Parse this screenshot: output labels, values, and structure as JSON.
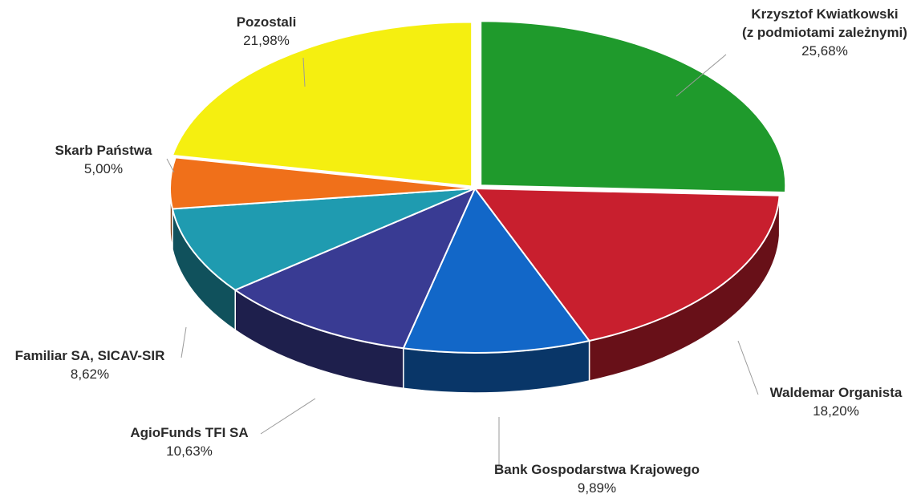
{
  "chart_data": {
    "type": "pie",
    "title": "",
    "series": [
      {
        "label": "Krzysztof Kwiatkowski",
        "label_line2": "(z podmiotami zależnymi)",
        "value": 25.68,
        "value_text": "25,68%",
        "color": "#1f9a2c"
      },
      {
        "label": "Waldemar Organista",
        "value": 18.2,
        "value_text": "18,20%",
        "color": "#c81f2e"
      },
      {
        "label": "Bank Gospodarstwa Krajowego",
        "value": 9.89,
        "value_text": "9,89%",
        "color": "#1267c8"
      },
      {
        "label": "AgioFunds TFI SA",
        "value": 10.63,
        "value_text": "10,63%",
        "color": "#393b93"
      },
      {
        "label": "Familiar SA, SICAV-SIR",
        "value": 8.62,
        "value_text": "8,62%",
        "color": "#1f9bb0"
      },
      {
        "label": "Skarb Państwa",
        "value": 5.0,
        "value_text": "5,00%",
        "color": "#f0701a"
      },
      {
        "label": "Pozostali",
        "value": 21.98,
        "value_text": "21,98%",
        "color": "#f5ef10"
      }
    ]
  }
}
